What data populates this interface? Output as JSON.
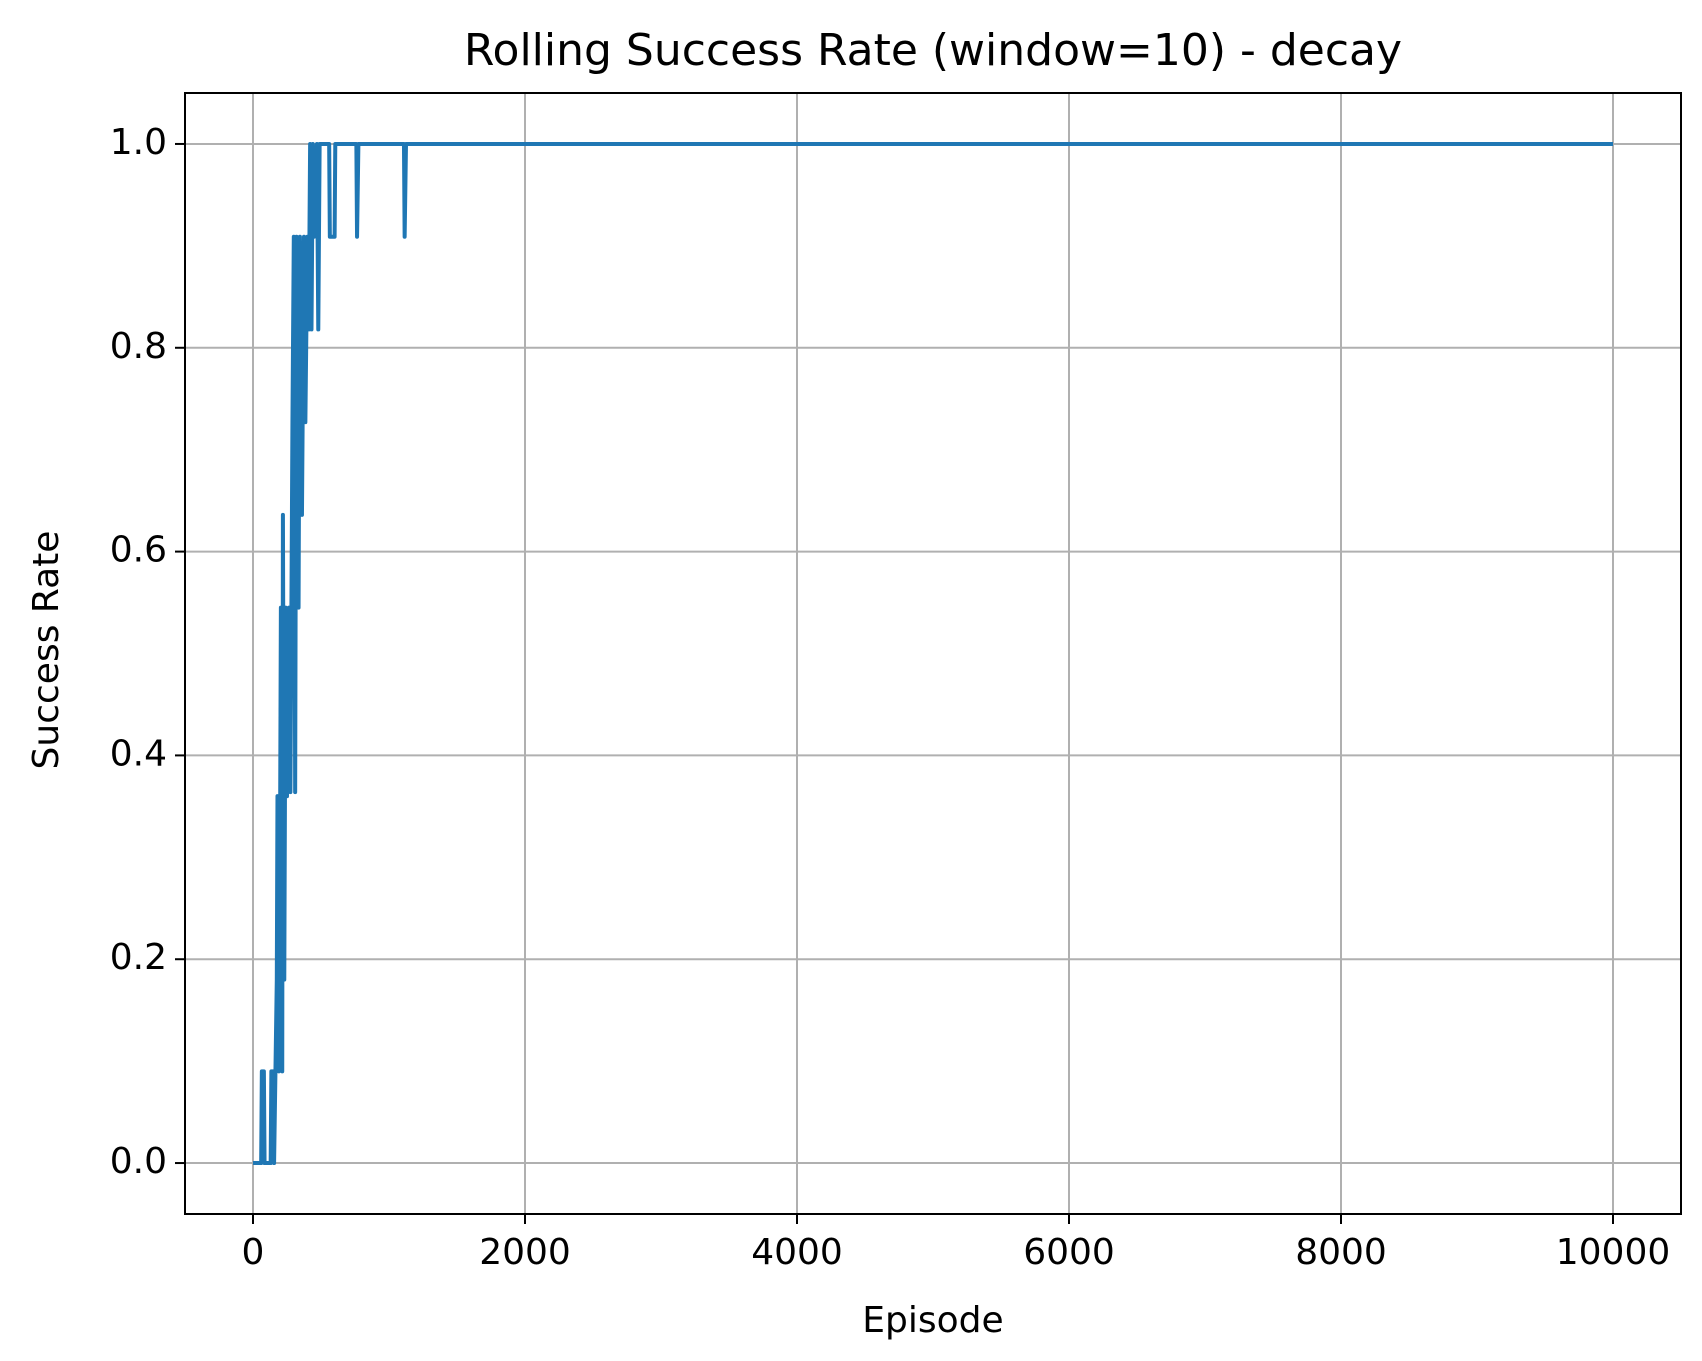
{
  "chart_data": {
    "type": "line",
    "title": "Rolling Success Rate (window=10) - decay",
    "x_label": "Episode",
    "y_label": "Success Rate",
    "x": [
      0,
      60,
      65,
      80,
      85,
      130,
      135,
      150,
      155,
      165,
      175,
      180,
      190,
      200,
      205,
      215,
      220,
      230,
      240,
      250,
      265,
      275,
      290,
      300,
      310,
      320,
      335,
      345,
      360,
      375,
      385,
      400,
      410,
      420,
      430,
      440,
      450,
      470,
      480,
      490,
      560,
      565,
      600,
      605,
      760,
      765,
      775,
      1110,
      1115,
      1125,
      10000
    ],
    "series": [
      {
        "name": "Success Rate",
        "color": "#1f77b4",
        "values": [
          0,
          0,
          0.09,
          0.09,
          0,
          0,
          0.09,
          0.09,
          0,
          0.09,
          0.18,
          0.36,
          0.09,
          0.36,
          0.545,
          0.09,
          0.636,
          0.18,
          0.545,
          0.36,
          0.545,
          0.364,
          0.727,
          0.909,
          0.364,
          0.909,
          0.545,
          0.909,
          0.636,
          0.909,
          0.727,
          0.909,
          0.818,
          1.0,
          0.818,
          1.0,
          0.909,
          1.0,
          0.818,
          1.0,
          1.0,
          0.909,
          0.909,
          1.0,
          1.0,
          0.909,
          1.0,
          1.0,
          0.909,
          1.0,
          1.0
        ]
      }
    ],
    "xlim": [
      -500,
      10500
    ],
    "ylim": [
      -0.05,
      1.05
    ],
    "xticks": [
      0,
      2000,
      4000,
      6000,
      8000,
      10000
    ],
    "yticks": [
      {
        "value": 0,
        "label": "0.0"
      },
      {
        "value": 0.2,
        "label": "0.2"
      },
      {
        "value": 0.4,
        "label": "0.4"
      },
      {
        "value": 0.6,
        "label": "0.6"
      },
      {
        "value": 0.8,
        "label": "0.8"
      },
      {
        "value": 1,
        "label": "1.0"
      }
    ],
    "grid": true
  }
}
